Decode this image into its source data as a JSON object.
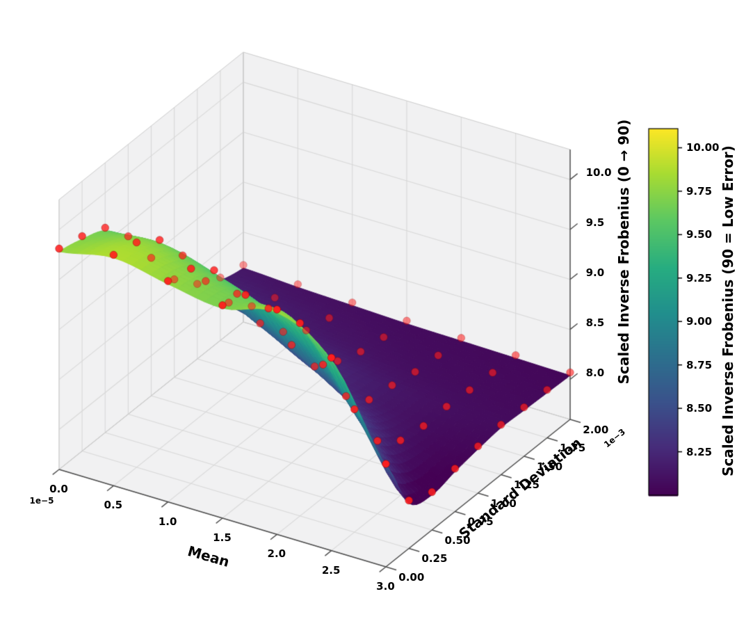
{
  "figure": {
    "colormap": "viridis",
    "marker_color": "#ff1e1e",
    "pane_color": "#f1f1f2",
    "grid_color": "#d8d8d8",
    "axis_line_color": "#4d4d4d",
    "background_color": "#ffffff"
  },
  "chart_data": {
    "type": "surface3d",
    "title": "",
    "xlabel": "Mean",
    "ylabel": "Standard Deviation",
    "zlabel": "Scaled Inverse Frobenius (0 → 90)",
    "x_offset_text": "1e−5",
    "y_offset_text": "1e−3",
    "x_ticks": [
      "0.0",
      "0.5",
      "1.0",
      "1.5",
      "2.0",
      "2.5",
      "3.0"
    ],
    "y_ticks": [
      "0.00",
      "0.25",
      "0.50",
      "0.75",
      "1.00",
      "1.25",
      "1.50",
      "1.75",
      "2.00"
    ],
    "z_ticks": [
      "8.0",
      "8.5",
      "9.0",
      "9.5",
      "10.0"
    ],
    "x_values": [
      0,
      0.5,
      1.0,
      1.5,
      2.0,
      2.5,
      3.0
    ],
    "y_values": [
      0,
      0.25,
      0.5,
      0.75,
      1.0,
      1.25,
      1.5,
      1.75,
      2.0
    ],
    "z_tick_values": [
      8.0,
      8.5,
      9.0,
      9.5,
      10.0
    ],
    "xlim": [
      0,
      3
    ],
    "ylim": [
      0,
      2
    ],
    "zlim": [
      7.6,
      10.3
    ],
    "x_scale": "1e-5",
    "y_scale": "1e-3",
    "grid": true,
    "z_grid": [
      [
        9.78,
        9.88,
        9.78,
        9.7,
        9.82,
        9.5,
        8.6
      ],
      [
        9.72,
        9.82,
        9.72,
        9.62,
        9.5,
        8.8,
        8.05
      ],
      [
        9.62,
        9.66,
        9.52,
        9.3,
        8.9,
        8.3,
        7.95
      ],
      [
        9.35,
        9.32,
        9.1,
        8.75,
        8.4,
        8.12,
        8.0
      ],
      [
        8.95,
        8.88,
        8.62,
        8.35,
        8.18,
        8.08,
        8.04
      ],
      [
        8.55,
        8.48,
        8.35,
        8.22,
        8.14,
        8.09,
        8.07
      ],
      [
        8.32,
        8.26,
        8.18,
        8.13,
        8.09,
        8.07,
        8.06
      ],
      [
        8.2,
        8.16,
        8.12,
        8.09,
        8.07,
        8.06,
        8.05
      ],
      [
        8.14,
        8.11,
        8.09,
        8.07,
        8.06,
        8.05,
        8.04
      ]
    ],
    "scatter_markers": "red dots at each (mean, std) sample point lying on the surface",
    "colorbar": {
      "label": "Scaled Inverse Frobenius (90 = Low Error)",
      "ticks": [
        "8.25",
        "8.50",
        "8.75",
        "9.00",
        "9.25",
        "9.50",
        "9.75",
        "10.00"
      ],
      "tick_values": [
        8.25,
        8.5,
        8.75,
        9.0,
        9.25,
        9.5,
        9.75,
        10.0
      ],
      "vmin": 8.0,
      "vmax": 10.11,
      "position": "right"
    },
    "legend": null,
    "view": {
      "elev": 30,
      "azim": -60
    }
  }
}
